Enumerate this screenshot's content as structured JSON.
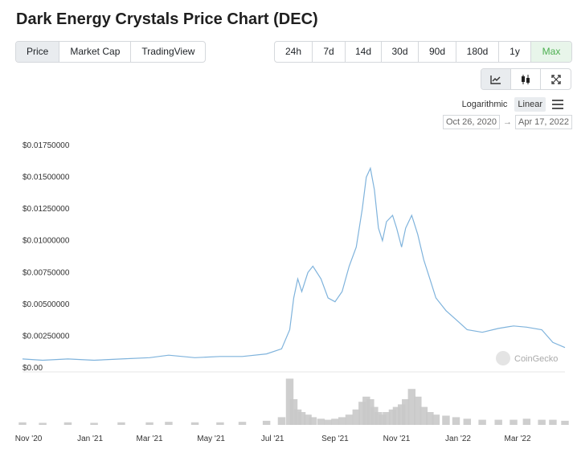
{
  "title": "Dark Energy Crystals Price Chart (DEC)",
  "tabs": [
    "Price",
    "Market Cap",
    "TradingView"
  ],
  "active_tab": "Price",
  "ranges": [
    "24h",
    "7d",
    "14d",
    "30d",
    "90d",
    "180d",
    "1y",
    "Max"
  ],
  "active_range": "Max",
  "view_buttons": [
    "line-chart-icon",
    "candlestick-icon",
    "fullscreen-icon"
  ],
  "scale": {
    "log_label": "Logarithmic",
    "linear_label": "Linear",
    "active": "Linear"
  },
  "date_range": {
    "from": "Oct 26, 2020",
    "arrow": "→",
    "to": "Apr 17, 2022"
  },
  "watermark": "CoinGecko",
  "colors": {
    "line": "#7fb3dc",
    "volume": "#c9c9c9",
    "accent": "#4caf50"
  },
  "chart_data": {
    "type": "line",
    "y_ticks": [
      "$0.00",
      "$0.00250000",
      "$0.00500000",
      "$0.00750000",
      "$0.01000000",
      "$0.01250000",
      "$0.01500000",
      "$0.01750000"
    ],
    "ylim": [
      0,
      0.0175
    ],
    "x_ticks": [
      "Nov '20",
      "Jan '21",
      "Mar '21",
      "May '21",
      "Jul '21",
      "Sep '21",
      "Nov '21",
      "Jan '22",
      "Mar '22"
    ],
    "x_tick_dates": [
      "2020-11-01",
      "2021-01-01",
      "2021-03-01",
      "2021-05-01",
      "2021-07-01",
      "2021-09-01",
      "2021-11-01",
      "2022-01-01",
      "2022-03-01"
    ],
    "series": [
      {
        "x": [
          "2020-10-26",
          "2020-11-15",
          "2020-12-10",
          "2021-01-05",
          "2021-02-01",
          "2021-03-01",
          "2021-03-20",
          "2021-04-15",
          "2021-05-10",
          "2021-06-01",
          "2021-06-25",
          "2021-07-10",
          "2021-07-18",
          "2021-07-22",
          "2021-07-26",
          "2021-07-30",
          "2021-08-05",
          "2021-08-10",
          "2021-08-18",
          "2021-08-25",
          "2021-09-01",
          "2021-09-08",
          "2021-09-15",
          "2021-09-22",
          "2021-09-28",
          "2021-10-02",
          "2021-10-06",
          "2021-10-10",
          "2021-10-14",
          "2021-10-18",
          "2021-10-22",
          "2021-10-28",
          "2021-11-01",
          "2021-11-06",
          "2021-11-10",
          "2021-11-16",
          "2021-11-22",
          "2021-11-28",
          "2021-12-04",
          "2021-12-10",
          "2021-12-20",
          "2021-12-30",
          "2022-01-10",
          "2022-01-25",
          "2022-02-10",
          "2022-02-25",
          "2022-03-10",
          "2022-03-25",
          "2022-04-05",
          "2022-04-17"
        ],
        "y": [
          0.0007,
          0.0006,
          0.0007,
          0.0006,
          0.0007,
          0.0008,
          0.001,
          0.0008,
          0.0009,
          0.0009,
          0.0011,
          0.0015,
          0.003,
          0.0055,
          0.007,
          0.006,
          0.0075,
          0.008,
          0.007,
          0.0055,
          0.0052,
          0.006,
          0.008,
          0.0095,
          0.0125,
          0.015,
          0.0157,
          0.014,
          0.011,
          0.01,
          0.0115,
          0.012,
          0.011,
          0.0095,
          0.011,
          0.012,
          0.0105,
          0.0085,
          0.007,
          0.0055,
          0.0045,
          0.0038,
          0.003,
          0.0028,
          0.0031,
          0.0033,
          0.0032,
          0.003,
          0.002,
          0.0016
        ]
      }
    ],
    "volume_note": "relative volume bars",
    "volume": [
      0.05,
      0.04,
      0.05,
      0.04,
      0.05,
      0.05,
      0.06,
      0.05,
      0.05,
      0.06,
      0.08,
      0.15,
      0.9,
      0.5,
      0.3,
      0.25,
      0.2,
      0.15,
      0.12,
      0.1,
      0.12,
      0.15,
      0.2,
      0.3,
      0.45,
      0.55,
      0.5,
      0.35,
      0.25,
      0.2,
      0.25,
      0.3,
      0.35,
      0.4,
      0.5,
      0.7,
      0.55,
      0.35,
      0.25,
      0.2,
      0.18,
      0.15,
      0.12,
      0.1,
      0.1,
      0.1,
      0.12,
      0.1,
      0.1,
      0.08
    ],
    "grid": false,
    "xlabel": "",
    "ylabel": ""
  }
}
